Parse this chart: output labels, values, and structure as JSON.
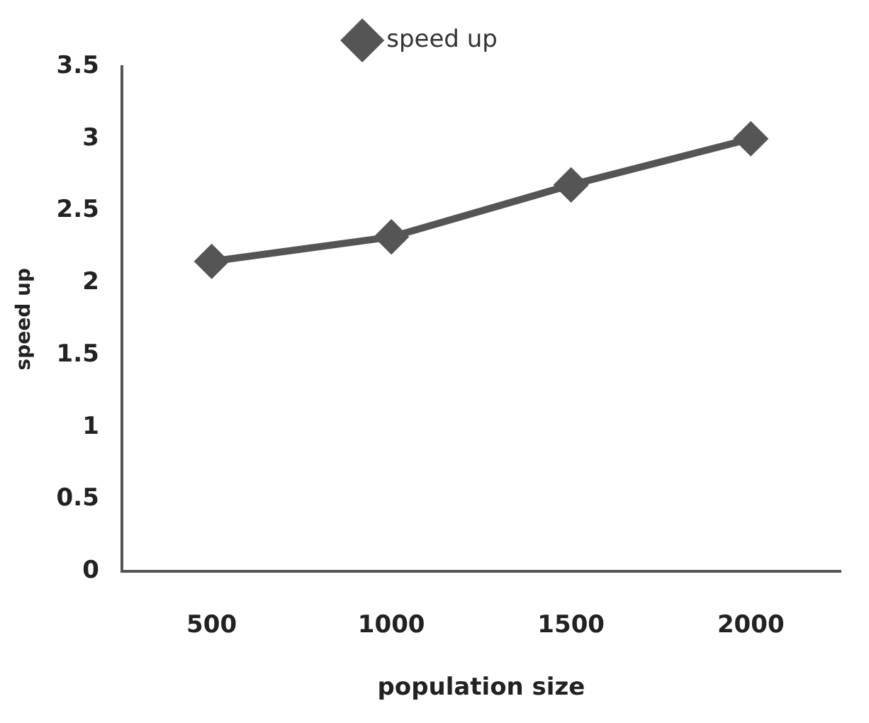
{
  "chart_data": {
    "type": "line",
    "xlabel": "population size",
    "ylabel": "speed up",
    "categories": [
      "500",
      "1000",
      "1500",
      "2000"
    ],
    "series": [
      {
        "name": "speed up",
        "color": "#555555",
        "values": [
          2.15,
          2.32,
          2.68,
          3.0
        ]
      }
    ],
    "ylim": [
      0,
      3.5
    ],
    "yticks": [
      0,
      0.5,
      1,
      1.5,
      2,
      2.5,
      3,
      3.5
    ],
    "grid": false,
    "legend": "top",
    "marker": "diamond",
    "line_style": "solid"
  }
}
